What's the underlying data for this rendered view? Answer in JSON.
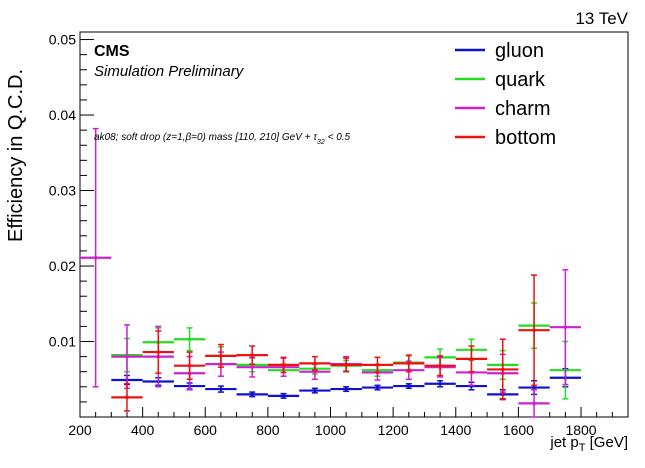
{
  "chart_data": {
    "type": "scatter",
    "energy_label": "13 TeV",
    "experiment": "CMS",
    "subtitle": "Simulation Preliminary",
    "selection": "ak08; soft drop (z=1,β=0) mass [110, 210] GeV + τ",
    "selection_sub": "32",
    "selection_tail": " < 0.5",
    "ylabel": "Efficiency in Q.C.D.",
    "xlabel_main": "jet p",
    "xlabel_sub": "T",
    "xlabel_unit": " [GeV]",
    "xlim": [
      200,
      1950
    ],
    "ylim": [
      0,
      0.051
    ],
    "x_ticks": [
      200,
      400,
      600,
      800,
      1000,
      1200,
      1400,
      1600,
      1800
    ],
    "y_ticks": [
      0.01,
      0.02,
      0.03,
      0.04,
      0.05
    ],
    "y_tick_labels": [
      "0.01",
      "0.02",
      "0.03",
      "0.04",
      "0.05"
    ],
    "legend_position": "top-right",
    "bin_half_width": 50,
    "series": [
      {
        "name": "gluon",
        "color": "#1010d0",
        "x": [
          350,
          450,
          550,
          650,
          750,
          850,
          950,
          1050,
          1150,
          1250,
          1350,
          1450,
          1550,
          1650,
          1750
        ],
        "y": [
          0.0049,
          0.0047,
          0.0041,
          0.0037,
          0.003,
          0.0028,
          0.0035,
          0.0037,
          0.0039,
          0.0041,
          0.0044,
          0.0041,
          0.003,
          0.0039,
          0.0052
        ],
        "err": [
          0.0006,
          0.0005,
          0.0004,
          0.0004,
          0.0003,
          0.0003,
          0.0003,
          0.0003,
          0.0003,
          0.0003,
          0.0004,
          0.0005,
          0.0006,
          0.0009,
          0.0012
        ]
      },
      {
        "name": "quark",
        "color": "#22dd22",
        "x": [
          350,
          450,
          550,
          650,
          750,
          850,
          950,
          1050,
          1150,
          1250,
          1350,
          1450,
          1550,
          1650,
          1750
        ],
        "y": [
          0.0082,
          0.0099,
          0.0103,
          0.0081,
          0.0069,
          0.0062,
          0.0064,
          0.0068,
          0.0062,
          0.0072,
          0.0079,
          0.0089,
          0.0069,
          0.0121,
          0.0062
        ],
        "err": [
          0.0022,
          0.0019,
          0.0015,
          0.0012,
          0.0009,
          0.0008,
          0.0007,
          0.0007,
          0.0008,
          0.0009,
          0.0011,
          0.0014,
          0.0019,
          0.003,
          0.0038
        ]
      },
      {
        "name": "charm",
        "color": "#cc22cc",
        "x": [
          250,
          350,
          450,
          550,
          650,
          750,
          850,
          950,
          1050,
          1150,
          1250,
          1350,
          1450,
          1550,
          1650,
          1750
        ],
        "y": [
          0.0211,
          0.008,
          0.008,
          0.0058,
          0.007,
          0.0066,
          0.0066,
          0.006,
          0.007,
          0.0059,
          0.0062,
          0.0066,
          0.0059,
          0.0058,
          0.0018,
          0.0119
        ],
        "err": [
          0.0171,
          0.0042,
          0.004,
          0.0022,
          0.0016,
          0.0013,
          0.0012,
          0.001,
          0.001,
          0.001,
          0.0012,
          0.0013,
          0.0017,
          0.0025,
          0.0018,
          0.0076
        ]
      },
      {
        "name": "bottom",
        "color": "#ee1111",
        "x": [
          350,
          450,
          550,
          650,
          750,
          850,
          950,
          1050,
          1150,
          1250,
          1350,
          1450,
          1550,
          1650
        ],
        "y": [
          0.0026,
          0.0086,
          0.0068,
          0.0081,
          0.0082,
          0.0069,
          0.0071,
          0.0069,
          0.0069,
          0.0071,
          0.0068,
          0.0077,
          0.0063,
          0.0115
        ],
        "err": [
          0.0018,
          0.0028,
          0.0018,
          0.0015,
          0.0012,
          0.001,
          0.0009,
          0.0009,
          0.001,
          0.0011,
          0.0013,
          0.0017,
          0.004,
          0.0073
        ]
      }
    ]
  }
}
